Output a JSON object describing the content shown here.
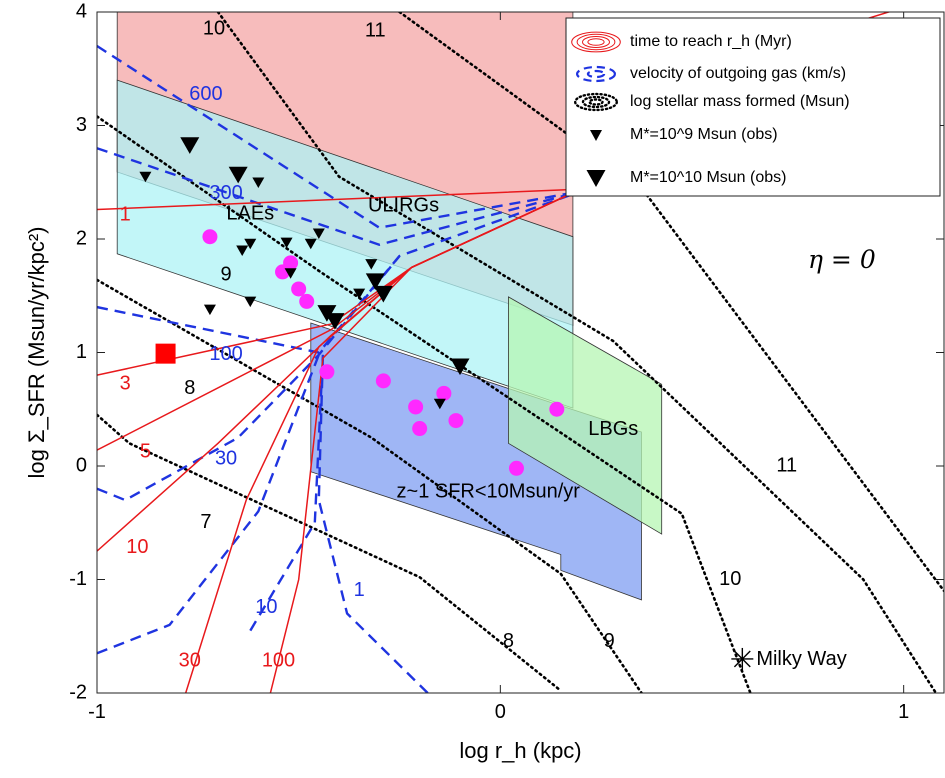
{
  "chart_data": {
    "type": "scatter",
    "xlabel": "log r_h (kpc)",
    "ylabel": "log Σ_SFR (Msun/yr/kpc²)",
    "xlim": [
      -1,
      1.1
    ],
    "ylim": [
      -2,
      4
    ],
    "x_ticks": [
      "-1",
      "0",
      "1"
    ],
    "y_ticks": [
      "-2",
      "-1",
      "0",
      "1",
      "2",
      "3",
      "4"
    ],
    "grid": false,
    "legend_position": "top-right",
    "legend": [
      {
        "label": "time to reach r_h (Myr)",
        "color": "#e8191c"
      },
      {
        "label": "velocity of outgoing gas (km/s)",
        "color": "#1f34e0"
      },
      {
        "label": "log stellar mass formed (Msun)",
        "color": "#000000"
      },
      {
        "label": "M*=10^9 Msun (obs)",
        "color": "#000000"
      },
      {
        "label": "M*=10^10 Msun (obs)",
        "color": "#000000"
      }
    ],
    "annotation_eta": "η = 0",
    "regions": [
      {
        "name": "ULIRGs",
        "color": "#f4a6a6",
        "vertices": [
          [
            -0.95,
            4.0
          ],
          [
            0.18,
            4.0
          ],
          [
            0.18,
            1.24
          ],
          [
            -0.95,
            2.59
          ]
        ]
      },
      {
        "name": "LAEs",
        "color": "#aef3f6",
        "vertices": [
          [
            -0.95,
            3.4
          ],
          [
            0.18,
            2.02
          ],
          [
            0.18,
            0.51
          ],
          [
            -0.95,
            1.87
          ]
        ]
      },
      {
        "name": "z~1 SFR<10Msun/yr",
        "color": "#7f9df1",
        "vertices": [
          [
            -0.47,
            1.26
          ],
          [
            0.15,
            0.53
          ],
          [
            0.35,
            0.3
          ],
          [
            0.35,
            -1.18
          ],
          [
            0.15,
            -0.92
          ],
          [
            0.15,
            -0.78
          ],
          [
            -0.47,
            -0.05
          ]
        ]
      },
      {
        "name": "LBGs",
        "color": "#b6f5b3",
        "vertices": [
          [
            0.02,
            1.49
          ],
          [
            0.4,
            0.72
          ],
          [
            0.4,
            -0.6
          ],
          [
            0.02,
            0.2
          ]
        ]
      }
    ],
    "region_labels": [
      {
        "text": "ULIRGs",
        "x": -0.24,
        "y": 2.29
      },
      {
        "text": "LAEs",
        "x": -0.62,
        "y": 2.22
      },
      {
        "text": "z~1 SFR<10Msun/yr",
        "x": -0.03,
        "y": -0.23
      },
      {
        "text": "LBGs",
        "x": 0.28,
        "y": 0.32
      }
    ],
    "time_contours": {
      "label": "time to reach r_h (Myr)",
      "labels": [
        {
          "text": "1",
          "x": -0.93,
          "y": 2.21
        },
        {
          "text": "3",
          "x": -0.93,
          "y": 0.72
        },
        {
          "text": "5",
          "x": -0.88,
          "y": 0.12
        },
        {
          "text": "10",
          "x": -0.9,
          "y": -0.72
        },
        {
          "text": "30",
          "x": -0.77,
          "y": -1.72
        },
        {
          "text": "100",
          "x": -0.55,
          "y": -1.72
        }
      ],
      "lines": [
        [
          [
            -1,
            2.26
          ],
          [
            0.2,
            2.44
          ],
          [
            0.78,
            3.8
          ],
          [
            1.1,
            4.15
          ]
        ],
        [
          [
            -1,
            0.8
          ],
          [
            -0.42,
            1.25
          ],
          [
            -0.22,
            1.75
          ],
          [
            0.2,
            2.44
          ]
        ],
        [
          [
            -1,
            0.14
          ],
          [
            -0.42,
            1.2
          ],
          [
            -0.22,
            1.75
          ],
          [
            0.2,
            2.44
          ]
        ],
        [
          [
            -1,
            -0.75
          ],
          [
            -0.7,
            0.2
          ],
          [
            -0.42,
            1.15
          ],
          [
            -0.22,
            1.75
          ],
          [
            0.2,
            2.44
          ]
        ],
        [
          [
            -0.78,
            -2.0
          ],
          [
            -0.63,
            -0.3
          ],
          [
            -0.45,
            1.05
          ],
          [
            -0.22,
            1.75
          ],
          [
            0.2,
            2.44
          ]
        ],
        [
          [
            -0.57,
            -2.0
          ],
          [
            -0.5,
            -1.0
          ],
          [
            -0.44,
            0.95
          ],
          [
            -0.22,
            1.75
          ],
          [
            0.2,
            2.44
          ]
        ]
      ]
    },
    "velocity_contours": {
      "label": "velocity of outgoing gas (km/s)",
      "labels": [
        {
          "text": "600",
          "x": -0.73,
          "y": 3.27
        },
        {
          "text": "300",
          "x": -0.68,
          "y": 2.4
        },
        {
          "text": "100",
          "x": -0.68,
          "y": 0.98
        },
        {
          "text": "30",
          "x": -0.68,
          "y": 0.06
        },
        {
          "text": "10",
          "x": -0.58,
          "y": -1.25
        },
        {
          "text": "1",
          "x": -0.35,
          "y": -1.1
        }
      ],
      "lines": [
        [
          [
            -1,
            3.7
          ],
          [
            -0.3,
            2.1
          ],
          [
            0.2,
            2.42
          ],
          [
            1.1,
            3.3
          ]
        ],
        [
          [
            -1,
            2.8
          ],
          [
            -0.3,
            1.95
          ],
          [
            0.2,
            2.42
          ]
        ],
        [
          [
            -1,
            1.4
          ],
          [
            -0.45,
            1.0
          ],
          [
            -0.25,
            1.85
          ],
          [
            0.2,
            2.42
          ]
        ],
        [
          [
            -1,
            -0.2
          ],
          [
            -0.93,
            -0.3
          ],
          [
            -0.65,
            0.25
          ],
          [
            -0.45,
            0.98
          ],
          [
            -0.25,
            1.85
          ]
        ],
        [
          [
            -1,
            -1.65
          ],
          [
            -0.82,
            -1.4
          ],
          [
            -0.6,
            -0.4
          ],
          [
            -0.45,
            0.98
          ]
        ],
        [
          [
            -0.62,
            -1.45
          ],
          [
            -0.46,
            -0.5
          ],
          [
            -0.44,
            0.98
          ]
        ],
        [
          [
            -0.18,
            -2.0
          ],
          [
            -0.38,
            -1.3
          ],
          [
            -0.45,
            -0.3
          ],
          [
            -0.44,
            0.98
          ]
        ]
      ]
    },
    "mass_contours": {
      "label": "log stellar mass formed (Msun)",
      "labels": [
        {
          "text": "10",
          "x": -0.71,
          "y": 3.85
        },
        {
          "text": "11",
          "x": -0.31,
          "y": 3.83
        },
        {
          "text": "9",
          "x": -0.68,
          "y": 1.68
        },
        {
          "text": "8",
          "x": -0.77,
          "y": 0.68
        },
        {
          "text": "7",
          "x": -0.73,
          "y": -0.5
        },
        {
          "text": "8",
          "x": 0.02,
          "y": -1.55
        },
        {
          "text": "9",
          "x": 0.27,
          "y": -1.55
        },
        {
          "text": "10",
          "x": 0.57,
          "y": -1.0
        },
        {
          "text": "11",
          "x": 0.71,
          "y": 0.0
        }
      ],
      "lines": [
        [
          [
            -1,
            0.45
          ],
          [
            -0.92,
            0.2
          ],
          [
            -0.2,
            -0.98
          ],
          [
            0.15,
            -1.98
          ]
        ],
        [
          [
            -1,
            1.64
          ],
          [
            -0.32,
            0.25
          ],
          [
            0.15,
            -0.95
          ],
          [
            0.35,
            -2.0
          ]
        ],
        [
          [
            -1,
            3.08
          ],
          [
            -0.45,
            1.72
          ],
          [
            0.45,
            -0.42
          ],
          [
            0.62,
            -2.0
          ]
        ],
        [
          [
            -0.7,
            4.0
          ],
          [
            -0.4,
            2.55
          ],
          [
            0.28,
            1.1
          ],
          [
            0.9,
            -1.0
          ],
          [
            1.08,
            -2.0
          ]
        ],
        [
          [
            -0.25,
            4.0
          ],
          [
            0.35,
            2.45
          ],
          [
            1.1,
            -1.1
          ]
        ]
      ]
    },
    "obs_small": {
      "label": "M*=10^9 Msun (obs)",
      "points": [
        [
          -0.88,
          2.55
        ],
        [
          -0.72,
          1.38
        ],
        [
          -0.6,
          2.5
        ],
        [
          -0.62,
          1.96
        ],
        [
          -0.64,
          1.9
        ],
        [
          -0.53,
          1.97
        ],
        [
          -0.62,
          1.45
        ],
        [
          -0.52,
          1.7
        ],
        [
          -0.47,
          1.96
        ],
        [
          -0.45,
          2.05
        ],
        [
          -0.35,
          1.52
        ],
        [
          -0.32,
          1.78
        ],
        [
          -0.15,
          0.55
        ]
      ]
    },
    "obs_large": {
      "label": "M*=10^10 Msun (obs)",
      "points": [
        [
          -0.77,
          2.83
        ],
        [
          -0.65,
          2.57
        ],
        [
          -0.43,
          1.35
        ],
        [
          -0.41,
          1.28
        ],
        [
          -0.31,
          1.63
        ],
        [
          -0.29,
          1.52
        ],
        [
          -0.1,
          0.88
        ]
      ]
    },
    "magenta_points": [
      [
        -0.72,
        2.02
      ],
      [
        -0.54,
        1.71
      ],
      [
        -0.52,
        1.79
      ],
      [
        -0.5,
        1.56
      ],
      [
        -0.48,
        1.45
      ],
      [
        -0.43,
        0.83
      ],
      [
        -0.29,
        0.75
      ],
      [
        -0.21,
        0.52
      ],
      [
        -0.2,
        0.33
      ],
      [
        -0.14,
        0.64
      ],
      [
        -0.11,
        0.4
      ],
      [
        0.04,
        -0.02
      ],
      [
        0.14,
        0.5
      ]
    ],
    "special_points": [
      {
        "name": "red square",
        "x": -0.83,
        "y": 0.99,
        "color": "#ff0000"
      },
      {
        "name": "Milky Way",
        "x": 0.6,
        "y": -1.7,
        "label": "Milky Way"
      }
    ]
  }
}
